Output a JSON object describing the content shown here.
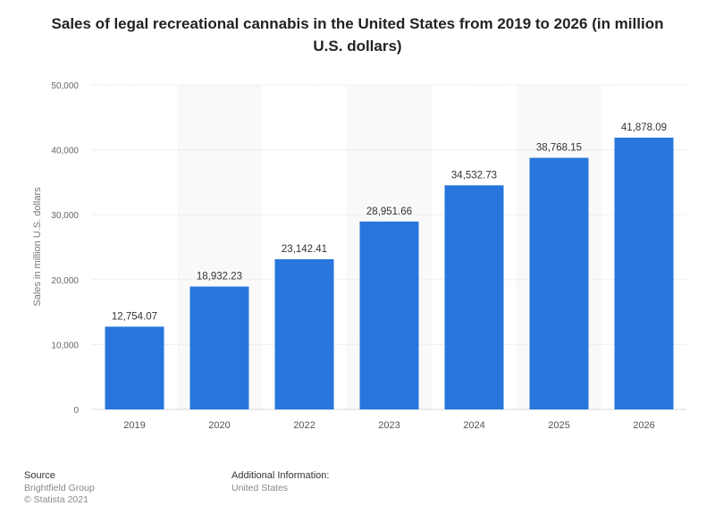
{
  "chart_data": {
    "type": "bar",
    "title": "Sales of legal recreational cannabis in the United States from 2019 to 2026 (in million U.S. dollars)",
    "xlabel": "",
    "ylabel": "Sales in million U.S. dollars",
    "categories": [
      "2019",
      "2020",
      "2022",
      "2023",
      "2024",
      "2025",
      "2026"
    ],
    "values": [
      12754.07,
      18932.23,
      23142.41,
      28951.66,
      34532.73,
      38768.15,
      41878.09
    ],
    "value_labels": [
      "12,754.07",
      "18,932.23",
      "23,142.41",
      "28,951.66",
      "34,532.73",
      "38,768.15",
      "41,878.09"
    ],
    "ylim": [
      0,
      50000
    ],
    "yticks": [
      0,
      10000,
      20000,
      30000,
      40000,
      50000
    ],
    "ytick_labels": [
      "0",
      "10,000",
      "20,000",
      "30,000",
      "40,000",
      "50,000"
    ],
    "grid": true,
    "legend": "none",
    "bar_color": "#2876dd"
  },
  "footer": {
    "source_heading": "Source",
    "source_name": "Brightfield Group",
    "copyright": "© Statista 2021",
    "additional_heading": "Additional Information:",
    "additional_value": "United States"
  }
}
